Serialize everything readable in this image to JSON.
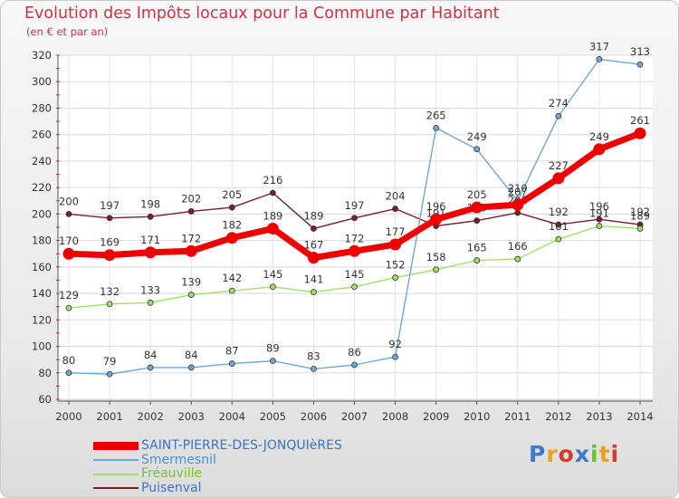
{
  "title": "Evolution des Impôts locaux pour la Commune par Habitant",
  "subtitle": "(en € et par an)",
  "logo": {
    "text": "Proxiti",
    "letter_colors": [
      "#3a7cc9",
      "#e8a020",
      "#d83a2a",
      "#3a7cc9",
      "#6bbf3a",
      "#e8a020",
      "#d83a2a"
    ]
  },
  "chart_data": {
    "type": "line",
    "title": "Evolution des Impôts locaux pour la Commune par Habitant",
    "ylabel": "(en € et par an)",
    "xlabel": "",
    "categories": [
      "2000",
      "2001",
      "2002",
      "2003",
      "2004",
      "2005",
      "2006",
      "2007",
      "2008",
      "2009",
      "2010",
      "2011",
      "2012",
      "2013",
      "2014"
    ],
    "ylim": [
      60,
      320
    ],
    "yticks": [
      "60",
      "80",
      "100",
      "120",
      "140",
      "160",
      "180",
      "200",
      "220",
      "240",
      "260",
      "280",
      "300",
      "320"
    ],
    "grid": true,
    "legend_position": "bottom-left",
    "series": [
      {
        "name": "Puisenval",
        "color": "#7a1f28",
        "values": [
          200,
          197,
          198,
          202,
          205,
          216,
          189,
          197,
          204,
          191,
          195,
          201,
          192,
          196,
          192
        ]
      },
      {
        "name": "Fréauville",
        "color": "#9ee06a",
        "values": [
          129,
          132,
          133,
          139,
          142,
          145,
          141,
          145,
          152,
          158,
          165,
          166,
          181,
          191,
          189
        ]
      },
      {
        "name": "Smermesnil",
        "color": "#6fa6d8",
        "values": [
          80,
          79,
          84,
          84,
          87,
          89,
          83,
          86,
          92,
          265,
          249,
          210,
          274,
          317,
          313
        ]
      },
      {
        "name": "SAINT-PIERRE-DES-JONQUIèRES",
        "color": "#ee0000",
        "values": [
          170,
          169,
          171,
          172,
          182,
          189,
          167,
          172,
          177,
          196,
          205,
          207,
          227,
          249,
          261
        ],
        "emphasis": true
      }
    ],
    "legend_order": [
      "SAINT-PIERRE-DES-JONQUIèRES",
      "Smermesnil",
      "Fréauville",
      "Puisenval"
    ]
  }
}
